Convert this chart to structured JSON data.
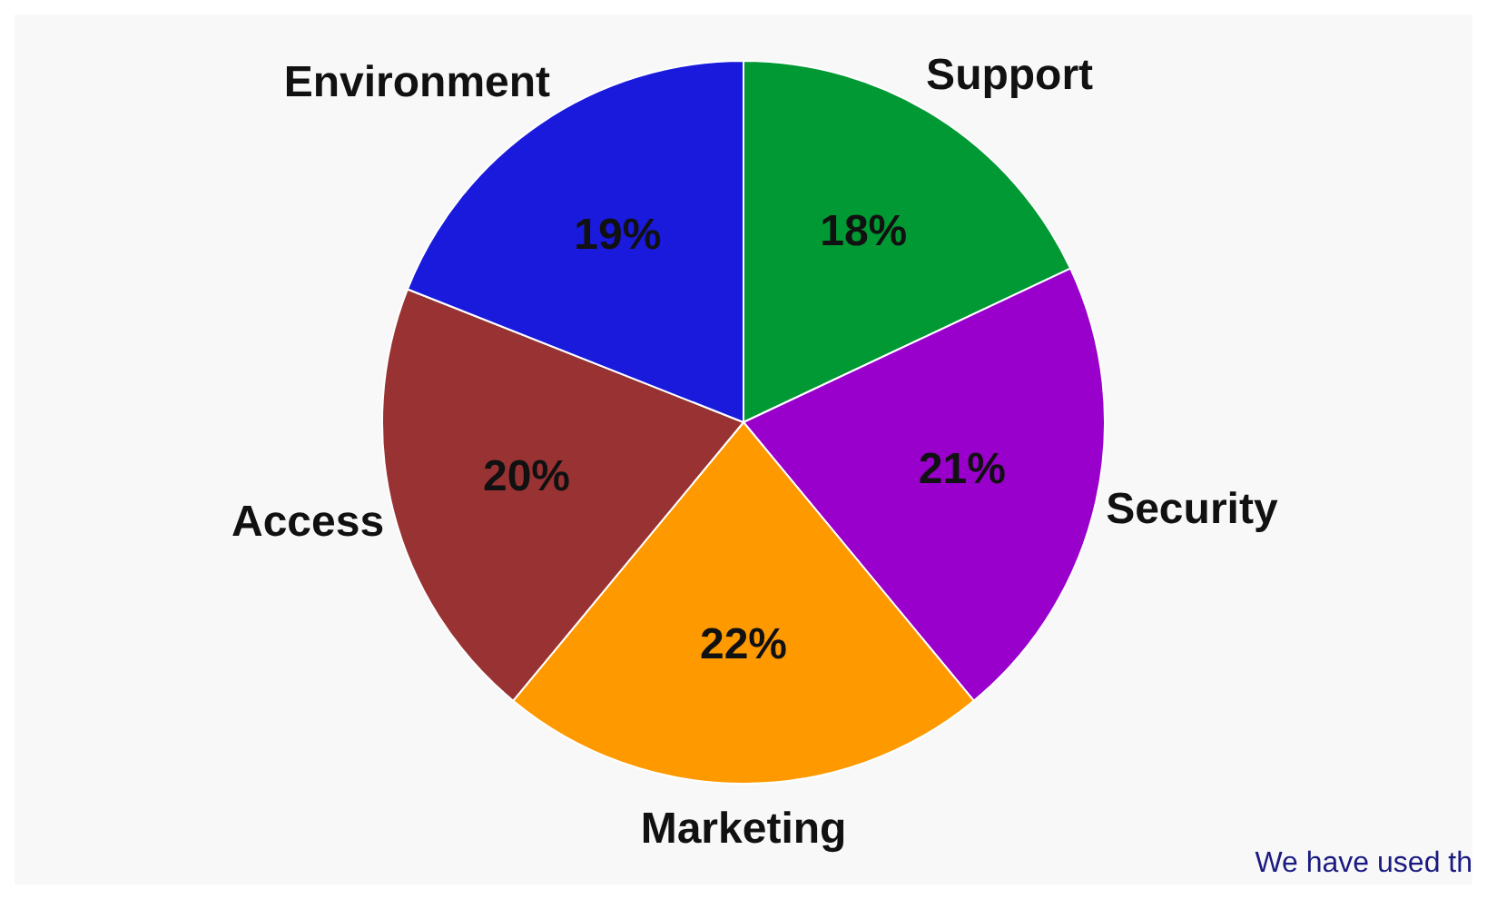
{
  "chart_data": {
    "type": "pie",
    "categories": [
      "Support",
      "Security",
      "Marketing",
      "Access",
      "Environment"
    ],
    "values": [
      18,
      21,
      22,
      20,
      19
    ],
    "colors": [
      "#009933",
      "#9900cc",
      "#ff9900",
      "#993333",
      "#1a1adc"
    ],
    "value_labels": [
      "18%",
      "21%",
      "22%",
      "20%",
      "19%"
    ],
    "legend": false,
    "annotations": [
      "We have used th"
    ]
  }
}
